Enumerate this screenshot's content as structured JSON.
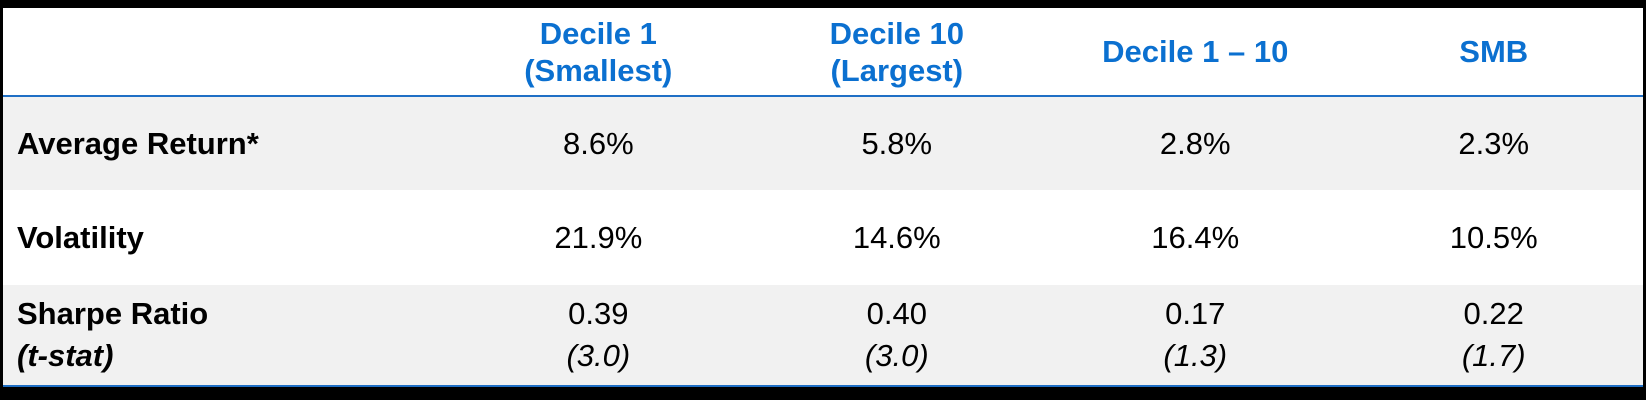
{
  "colors": {
    "header_text": "#0b70d0",
    "rule_blue": "#1f6fc5",
    "row_alt_bg": "#f1f1f1",
    "frame": "#000000",
    "body_text": "#000000"
  },
  "table": {
    "columns": [
      {
        "label": "Decile 1\n(Smallest)"
      },
      {
        "label": "Decile 10\n(Largest)"
      },
      {
        "label": "Decile 1 – 10"
      },
      {
        "label": "SMB"
      }
    ],
    "rows": [
      {
        "label": "Average Return*",
        "values": [
          "8.6%",
          "5.8%",
          "2.8%",
          "2.3%"
        ]
      },
      {
        "label": "Volatility",
        "values": [
          "21.9%",
          "14.6%",
          "16.4%",
          "10.5%"
        ]
      },
      {
        "label": "Sharpe Ratio",
        "sublabel": "(t-stat)",
        "values": [
          "0.39",
          "0.40",
          "0.17",
          "0.22"
        ],
        "subvalues": [
          "(3.0)",
          "(3.0)",
          "(1.3)",
          "(1.7)"
        ]
      }
    ]
  }
}
